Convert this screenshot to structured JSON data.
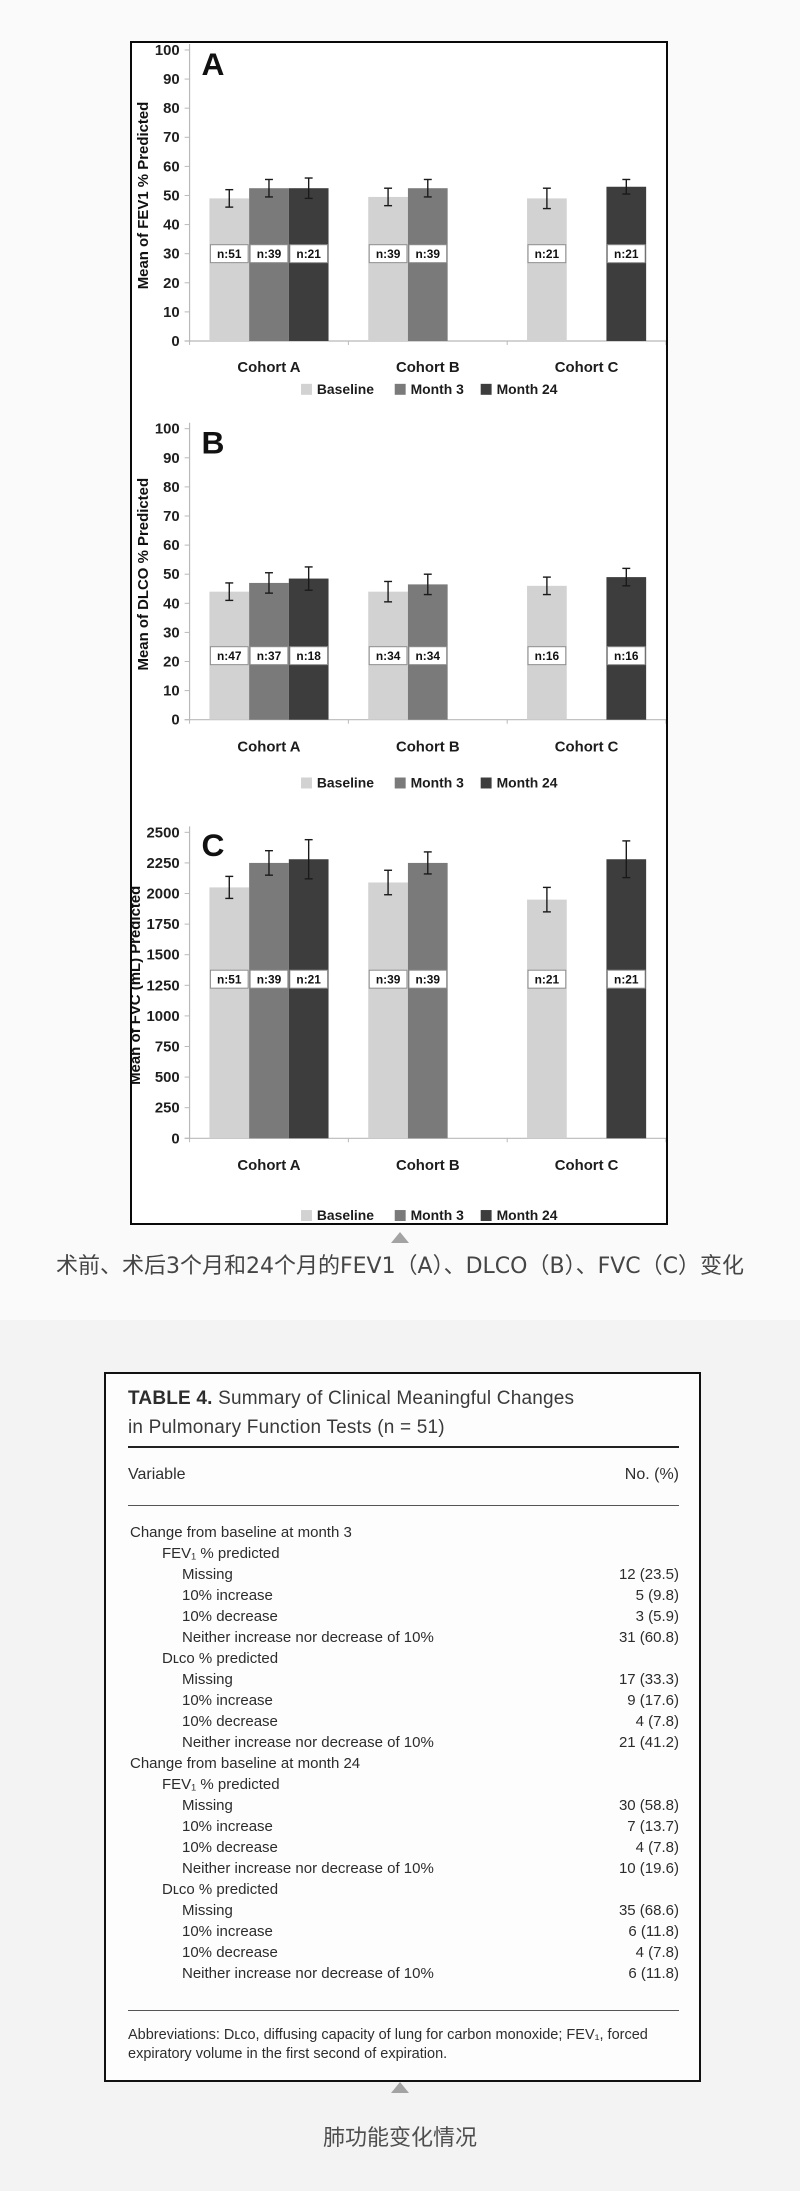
{
  "caption_figure": "术前、术后3个月和24个月的FEV1（A）、DLCO（B）、FVC（C）变化",
  "caption_table": "肺功能变化情况",
  "chart_data": [
    {
      "type": "bar",
      "panel_label": "A",
      "ylabel": "Mean of FEV1 % Predicted",
      "xlabel": "",
      "ylim": [
        0,
        100
      ],
      "ytick_step": 10,
      "grid": false,
      "legend_position": "bottom",
      "categories": [
        "Cohort A",
        "Cohort B",
        "Cohort C"
      ],
      "series": [
        {
          "name": "Baseline",
          "color": "#d2d2d2",
          "values": [
            49,
            49.5,
            49
          ],
          "errors": [
            3,
            3,
            3.5
          ],
          "n_labels": [
            "n:51",
            "n:39",
            "n:21"
          ]
        },
        {
          "name": "Month 3",
          "color": "#7a7a7a",
          "values": [
            52.5,
            52.5,
            null
          ],
          "errors": [
            3,
            3,
            null
          ],
          "n_labels": [
            "n:39",
            "n:39",
            null
          ]
        },
        {
          "name": "Month 24",
          "color": "#3d3d3d",
          "values": [
            52.5,
            null,
            53
          ],
          "errors": [
            3.5,
            null,
            2.5
          ],
          "n_labels": [
            "n:21",
            null,
            "n:21"
          ]
        }
      ]
    },
    {
      "type": "bar",
      "panel_label": "B",
      "ylabel": "Mean of DLCO % Predicted",
      "xlabel": "",
      "ylim": [
        0,
        100
      ],
      "ytick_step": 10,
      "grid": false,
      "legend_position": "bottom",
      "categories": [
        "Cohort A",
        "Cohort B",
        "Cohort C"
      ],
      "series": [
        {
          "name": "Baseline",
          "color": "#d2d2d2",
          "values": [
            44,
            44,
            46
          ],
          "errors": [
            3,
            3.5,
            3
          ],
          "n_labels": [
            "n:47",
            "n:34",
            "n:16"
          ]
        },
        {
          "name": "Month 3",
          "color": "#7a7a7a",
          "values": [
            47,
            46.5,
            null
          ],
          "errors": [
            3.5,
            3.5,
            null
          ],
          "n_labels": [
            "n:37",
            "n:34",
            null
          ]
        },
        {
          "name": "Month 24",
          "color": "#3d3d3d",
          "values": [
            48.5,
            null,
            49
          ],
          "errors": [
            4,
            null,
            3
          ],
          "n_labels": [
            "n:18",
            null,
            "n:16"
          ]
        }
      ]
    },
    {
      "type": "bar",
      "panel_label": "C",
      "ylabel": "Mean of FVC (mL) Predicted",
      "xlabel": "",
      "ylim": [
        0,
        2500
      ],
      "ytick_step": 250,
      "grid": false,
      "legend_position": "bottom",
      "categories": [
        "Cohort A",
        "Cohort B",
        "Cohort C"
      ],
      "series": [
        {
          "name": "Baseline",
          "color": "#d2d2d2",
          "values": [
            2050,
            2090,
            1950
          ],
          "errors": [
            90,
            100,
            100
          ],
          "n_labels": [
            "n:51",
            "n:39",
            "n:21"
          ]
        },
        {
          "name": "Month 3",
          "color": "#7a7a7a",
          "values": [
            2250,
            2250,
            null
          ],
          "errors": [
            100,
            90,
            null
          ],
          "n_labels": [
            "n:39",
            "n:39",
            null
          ]
        },
        {
          "name": "Month 24",
          "color": "#3d3d3d",
          "values": [
            2280,
            null,
            2280
          ],
          "errors": [
            160,
            null,
            150
          ],
          "n_labels": [
            "n:21",
            null,
            "n:21"
          ]
        }
      ]
    }
  ],
  "table": {
    "title_bold": "TABLE 4.",
    "title_rest": "Summary of Clinical Meaningful Changes",
    "title_line2": "in Pulmonary Function Tests (n = 51)",
    "columns": [
      "Variable",
      "No. (%)"
    ],
    "rows": [
      {
        "label": "Change from baseline at month 3",
        "value": "",
        "indent": 0
      },
      {
        "label": "FEV₁ % predicted",
        "value": "",
        "indent": 1
      },
      {
        "label": "Missing",
        "value": "12 (23.5)",
        "indent": 2
      },
      {
        "label": "10% increase",
        "value": "5 (9.8)",
        "indent": 2
      },
      {
        "label": "10% decrease",
        "value": "3 (5.9)",
        "indent": 2
      },
      {
        "label": "Neither increase nor decrease of 10%",
        "value": "31 (60.8)",
        "indent": 2
      },
      {
        "label": "Dʟᴄᴏ % predicted",
        "value": "",
        "indent": 1
      },
      {
        "label": "Missing",
        "value": "17 (33.3)",
        "indent": 2
      },
      {
        "label": "10% increase",
        "value": "9 (17.6)",
        "indent": 2
      },
      {
        "label": "10% decrease",
        "value": "4 (7.8)",
        "indent": 2
      },
      {
        "label": "Neither increase nor decrease of 10%",
        "value": "21 (41.2)",
        "indent": 2
      },
      {
        "label": "Change from baseline at month 24",
        "value": "",
        "indent": 0
      },
      {
        "label": "FEV₁ % predicted",
        "value": "",
        "indent": 1
      },
      {
        "label": "Missing",
        "value": "30 (58.8)",
        "indent": 2
      },
      {
        "label": "10% increase",
        "value": "7 (13.7)",
        "indent": 2
      },
      {
        "label": "10% decrease",
        "value": "4 (7.8)",
        "indent": 2
      },
      {
        "label": "Neither increase nor decrease of 10%",
        "value": "10 (19.6)",
        "indent": 2
      },
      {
        "label": "Dʟᴄᴏ % predicted",
        "value": "",
        "indent": 1
      },
      {
        "label": "Missing",
        "value": "35 (68.6)",
        "indent": 2
      },
      {
        "label": "10% increase",
        "value": "6 (11.8)",
        "indent": 2
      },
      {
        "label": "10% decrease",
        "value": "4 (7.8)",
        "indent": 2
      },
      {
        "label": "Neither increase nor decrease of 10%",
        "value": "6 (11.8)",
        "indent": 2
      }
    ],
    "footnote": "Abbreviations: Dʟᴄᴏ, diffusing capacity of lung for carbon monoxide; FEV₁, forced expiratory volume in the first second of expiration."
  },
  "colors": {
    "baseline_bar": "#d2d2d2",
    "month3_bar": "#7a7a7a",
    "month24_bar": "#3d3d3d",
    "page_background": "#f3f3f3",
    "figure_border": "#0a0a0a",
    "triangle_marker": "#a3a3a3"
  }
}
